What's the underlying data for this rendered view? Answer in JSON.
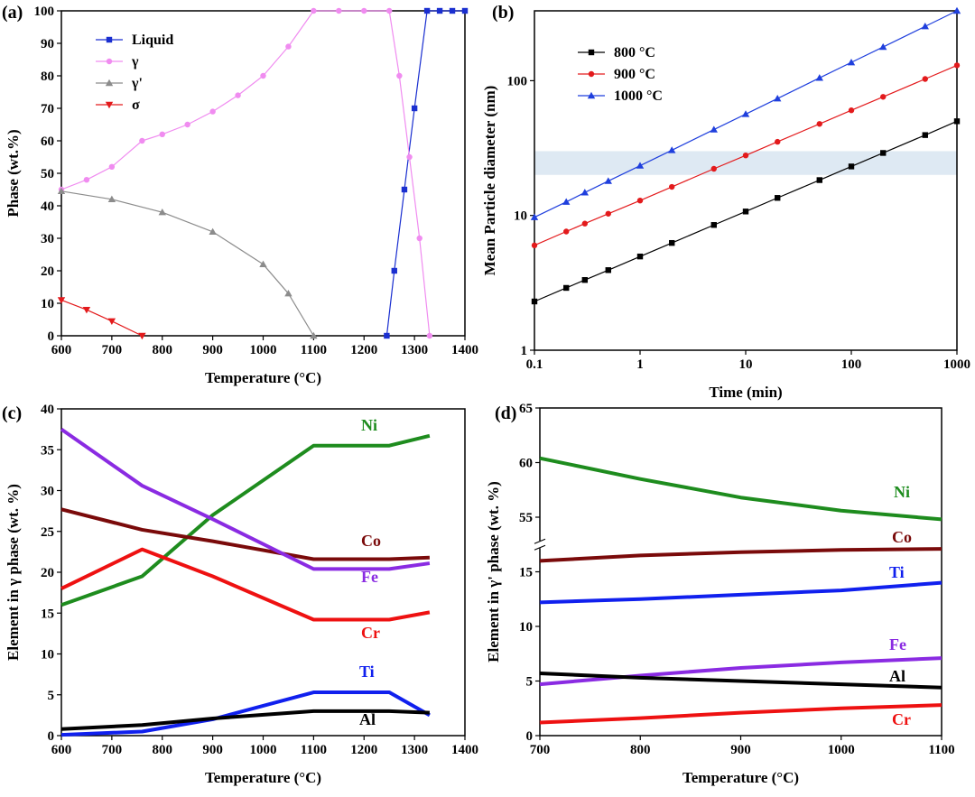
{
  "chart_data": [
    {
      "type": "line",
      "panel_label": "(a)",
      "xlabel": "Temperature (°C)",
      "ylabel": "Phase (wt.%)",
      "xlim": [
        600,
        1400
      ],
      "ylim": [
        0,
        100
      ],
      "xticks": [
        600,
        700,
        800,
        900,
        1000,
        1100,
        1200,
        1300,
        1400
      ],
      "yticks": [
        0,
        10,
        20,
        30,
        40,
        50,
        60,
        70,
        80,
        90,
        100
      ],
      "legend": "upper left",
      "series": [
        {
          "name": "Liquid",
          "color": "#1a2fd0",
          "marker": "square",
          "x": [
            1245,
            1260,
            1280,
            1300,
            1325,
            1350,
            1375,
            1400
          ],
          "values": [
            0,
            20,
            45,
            70,
            100,
            100,
            100,
            100
          ]
        },
        {
          "name": "γ",
          "color": "#f08cf0",
          "marker": "circle",
          "x": [
            600,
            650,
            700,
            760,
            800,
            850,
            900,
            950,
            1000,
            1050,
            1100,
            1150,
            1200,
            1250,
            1270,
            1290,
            1310,
            1330
          ],
          "values": [
            45,
            48,
            52,
            60,
            62,
            65,
            69,
            74,
            80,
            89,
            100,
            100,
            100,
            100,
            80,
            55,
            30,
            0
          ]
        },
        {
          "name": "γ'",
          "color": "#8c8c8c",
          "marker": "triangle",
          "x": [
            600,
            700,
            800,
            900,
            1000,
            1050,
            1100
          ],
          "values": [
            44.5,
            42,
            38,
            32,
            22,
            13,
            0
          ]
        },
        {
          "name": "σ",
          "color": "#e31a1c",
          "marker": "triangle-down",
          "x": [
            600,
            650,
            700,
            760
          ],
          "values": [
            11,
            8,
            4.5,
            0
          ]
        }
      ]
    },
    {
      "type": "line",
      "panel_label": "(b)",
      "xlabel": "Time (min)",
      "ylabel": "Mean Particle diameter (nm)",
      "xscale": "log",
      "yscale": "log",
      "xlim": [
        0.1,
        1000
      ],
      "ylim": [
        1,
        330
      ],
      "xticks": [
        0.1,
        1,
        10,
        100,
        1000
      ],
      "yticks": [
        1,
        10,
        100
      ],
      "highlight_band": [
        20,
        30
      ],
      "legend": "upper left",
      "series": [
        {
          "name": "800 °C",
          "color": "#000000",
          "marker": "square",
          "x": [
            0.1,
            0.2,
            0.3,
            0.5,
            1,
            2,
            5,
            10,
            20,
            50,
            100,
            200,
            500,
            1000
          ],
          "values": [
            2.3,
            2.9,
            3.32,
            3.93,
            4.96,
            6.25,
            8.5,
            10.7,
            13.5,
            18.3,
            23.1,
            29.1,
            39.5,
            50
          ]
        },
        {
          "name": "900 °C",
          "color": "#e31a1c",
          "marker": "circle",
          "x": [
            0.1,
            0.2,
            0.3,
            0.5,
            1,
            2,
            5,
            10,
            20,
            50,
            100,
            200,
            500,
            1000
          ],
          "values": [
            6,
            7.6,
            8.7,
            10.3,
            12.9,
            16.3,
            22.2,
            27.9,
            35.2,
            47.8,
            60.3,
            75.9,
            103,
            130
          ]
        },
        {
          "name": "1000 °C",
          "color": "#1f3fdd",
          "marker": "triangle",
          "x": [
            0.1,
            0.2,
            0.3,
            0.5,
            1,
            2,
            5,
            10,
            20,
            50,
            100,
            200,
            500,
            1000
          ],
          "values": [
            9.7,
            12.6,
            14.8,
            18,
            23.4,
            30.5,
            43.4,
            56.5,
            73.7,
            104.9,
            136.7,
            178,
            253,
            330
          ]
        }
      ]
    },
    {
      "type": "line",
      "panel_label": "(c)",
      "xlabel": "Temperature (°C)",
      "ylabel": "Element in γ phase (wt. %)",
      "xlim": [
        600,
        1400
      ],
      "ylim": [
        0,
        40
      ],
      "xticks": [
        600,
        700,
        800,
        900,
        1000,
        1100,
        1200,
        1300,
        1400
      ],
      "yticks": [
        0,
        5,
        10,
        15,
        20,
        25,
        30,
        35,
        40
      ],
      "series": [
        {
          "name": "Ni",
          "color": "#1e8c1e",
          "x": [
            600,
            760,
            900,
            1100,
            1250,
            1330
          ],
          "values": [
            16,
            19.5,
            27,
            35.5,
            35.5,
            36.7
          ]
        },
        {
          "name": "Co",
          "color": "#7a0a0a",
          "x": [
            600,
            760,
            900,
            1100,
            1250,
            1330
          ],
          "values": [
            27.7,
            25.2,
            23.8,
            21.6,
            21.6,
            21.8
          ]
        },
        {
          "name": "Fe",
          "color": "#8a2be2",
          "x": [
            600,
            760,
            900,
            1100,
            1250,
            1330
          ],
          "values": [
            37.5,
            30.6,
            26.5,
            20.4,
            20.4,
            21.1
          ]
        },
        {
          "name": "Cr",
          "color": "#ee1111",
          "x": [
            600,
            760,
            900,
            1100,
            1250,
            1330
          ],
          "values": [
            18,
            22.8,
            19.5,
            14.2,
            14.2,
            15.1
          ]
        },
        {
          "name": "Ti",
          "color": "#1020ee",
          "x": [
            600,
            760,
            900,
            1100,
            1250,
            1330
          ],
          "values": [
            0.1,
            0.5,
            2,
            5.3,
            5.3,
            2.5
          ]
        },
        {
          "name": "Al",
          "color": "#000000",
          "x": [
            600,
            760,
            900,
            1100,
            1250,
            1330
          ],
          "values": [
            0.8,
            1.3,
            2.1,
            3,
            3,
            2.8
          ]
        }
      ]
    },
    {
      "type": "line",
      "panel_label": "(d)",
      "xlabel": "Temperature (°C)",
      "ylabel": "Element in γ' phase (wt. %)",
      "xlim": [
        700,
        1100
      ],
      "ylim": [
        0,
        65
      ],
      "ybreak": [
        17.5,
        52.5
      ],
      "xticks": [
        700,
        800,
        900,
        1000,
        1100
      ],
      "yticks": [
        0,
        5,
        10,
        15,
        55,
        60,
        65
      ],
      "series": [
        {
          "name": "Ni",
          "color": "#1e8c1e",
          "x": [
            700,
            800,
            900,
            1000,
            1100
          ],
          "values": [
            60.4,
            58.5,
            56.8,
            55.6,
            54.8
          ]
        },
        {
          "name": "Co",
          "color": "#7a0a0a",
          "x": [
            700,
            800,
            900,
            1000,
            1100
          ],
          "values": [
            16,
            16.5,
            16.8,
            17,
            17.1
          ]
        },
        {
          "name": "Ti",
          "color": "#1020ee",
          "x": [
            700,
            800,
            900,
            1000,
            1100
          ],
          "values": [
            12.2,
            12.5,
            12.9,
            13.3,
            14
          ]
        },
        {
          "name": "Fe",
          "color": "#8a2be2",
          "x": [
            700,
            800,
            900,
            1000,
            1100
          ],
          "values": [
            4.7,
            5.5,
            6.2,
            6.7,
            7.1
          ]
        },
        {
          "name": "Al",
          "color": "#000000",
          "x": [
            700,
            800,
            900,
            1000,
            1100
          ],
          "values": [
            5.7,
            5.3,
            5,
            4.7,
            4.4
          ]
        },
        {
          "name": "Cr",
          "color": "#ee1111",
          "x": [
            700,
            800,
            900,
            1000,
            1100
          ],
          "values": [
            1.2,
            1.6,
            2.1,
            2.5,
            2.8
          ]
        }
      ]
    }
  ]
}
